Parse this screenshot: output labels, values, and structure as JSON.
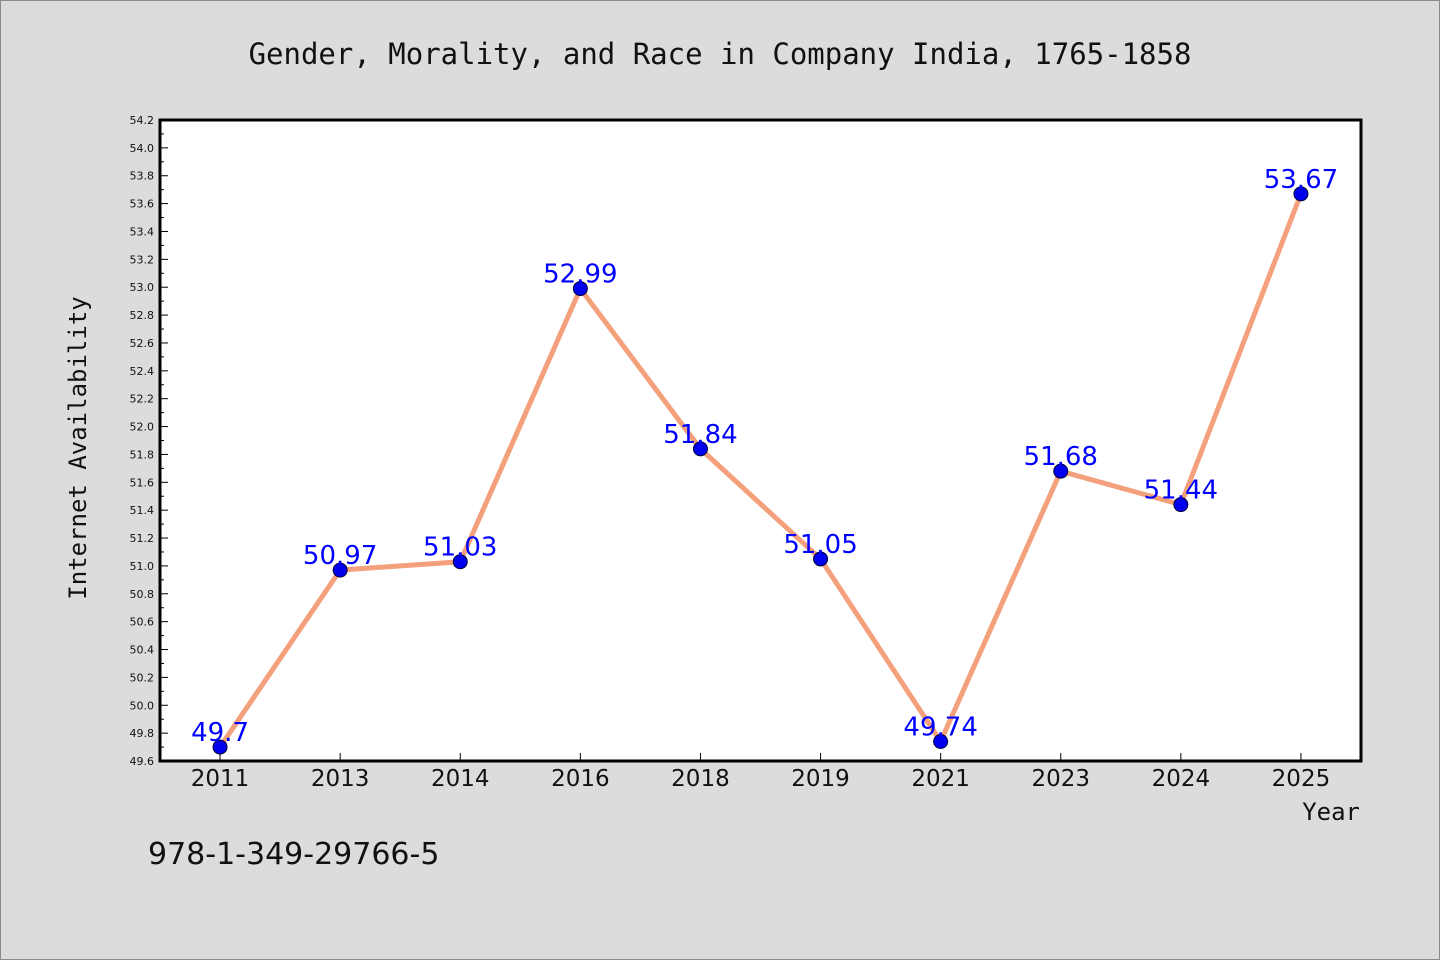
{
  "colors": {
    "background": "#dcdcdc",
    "plot_background": "#ffffff",
    "line": "#f4a07c",
    "marker": "#0000ee",
    "data_label": "#0000ff"
  },
  "footer_text": "978-1-349-29766-5",
  "chart_data": {
    "type": "line",
    "title": "Gender, Morality, and Race in Company India, 1765-1858",
    "xlabel": "Year",
    "ylabel": "Internet Availability",
    "categories": [
      "2011",
      "2013",
      "2014",
      "2016",
      "2018",
      "2019",
      "2021",
      "2023",
      "2024",
      "2025"
    ],
    "series": [
      {
        "values": [
          49.7,
          50.97,
          51.03,
          52.99,
          51.84,
          51.05,
          49.74,
          51.68,
          51.44,
          53.67
        ],
        "data_labels": [
          "49.7",
          "50.97",
          "51.03",
          "52.99",
          "51.84",
          "51.05",
          "49.74",
          "51.68",
          "51.44",
          "53.67"
        ]
      }
    ],
    "ylim": [
      49.6,
      54.2
    ],
    "yticks": [
      "49.6",
      "49.8",
      "50.0",
      "50.2",
      "50.4",
      "50.6",
      "50.8",
      "51.0",
      "51.2",
      "51.4",
      "51.6",
      "51.8",
      "52.0",
      "52.2",
      "52.4",
      "52.6",
      "52.8",
      "53.0",
      "53.2",
      "53.4",
      "53.6",
      "53.8",
      "54.0",
      "54.2"
    ],
    "grid": false,
    "legend": "none"
  }
}
